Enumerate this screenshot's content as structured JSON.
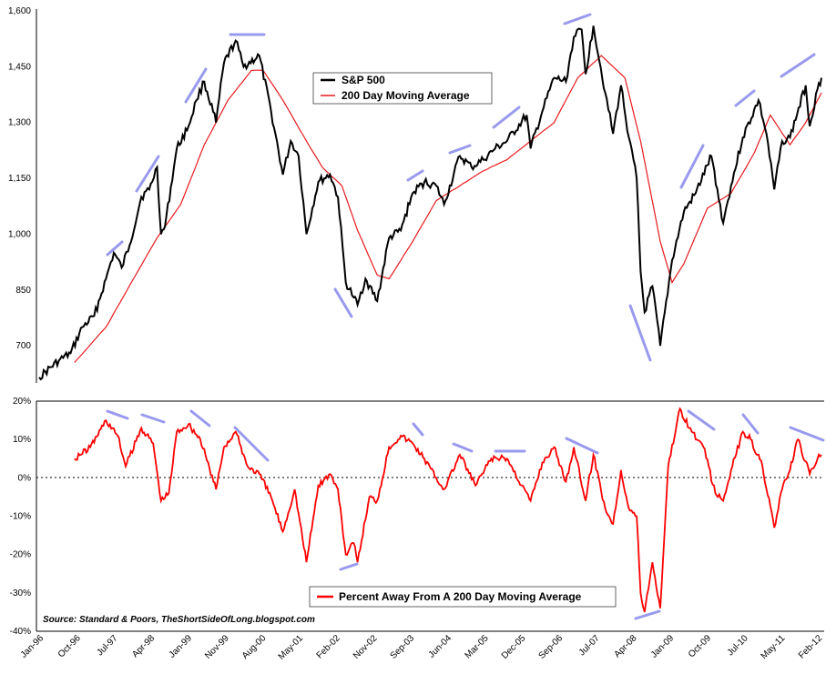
{
  "source": "Source: Standard & Poors, TheShortSideOfLong.blogspot.com",
  "colors": {
    "sp500": "#000000",
    "moving_average": "#e8191c",
    "pct_away": "#ff0000",
    "trend_marks": "#9999ee",
    "zero_line": "#000000"
  },
  "chart_data": [
    {
      "type": "line",
      "title": "",
      "legend_position": "top-center",
      "grid": false,
      "ylim": [
        600,
        1600
      ],
      "y_ticks": [
        {
          "value": 700,
          "label": "700"
        },
        {
          "value": 850,
          "label": "850"
        },
        {
          "value": 1000,
          "label": "1,000"
        },
        {
          "value": 1150,
          "label": "1,150"
        },
        {
          "value": 1300,
          "label": "1,300"
        },
        {
          "value": 1450,
          "label": "1,450"
        },
        {
          "value": 1600,
          "label": "1,600"
        }
      ],
      "x_domain": [
        "1996-01",
        "2012-08"
      ],
      "series": [
        {
          "name": "S&P 500",
          "color": "#000000",
          "points": [
            [
              "1996-01",
              615
            ],
            [
              "1996-06",
              660
            ],
            [
              "1996-09",
              680
            ],
            [
              "1996-12",
              750
            ],
            [
              "1997-03",
              780
            ],
            [
              "1997-06",
              880
            ],
            [
              "1997-08",
              950
            ],
            [
              "1997-10",
              910
            ],
            [
              "1997-12",
              970
            ],
            [
              "1998-03",
              1100
            ],
            [
              "1998-05",
              1120
            ],
            [
              "1998-07",
              1180
            ],
            [
              "1998-08",
              1000
            ],
            [
              "1998-09",
              1020
            ],
            [
              "1998-12",
              1230
            ],
            [
              "1999-03",
              1290
            ],
            [
              "1999-05",
              1360
            ],
            [
              "1999-07",
              1410
            ],
            [
              "1999-10",
              1300
            ],
            [
              "1999-12",
              1460
            ],
            [
              "2000-03",
              1520
            ],
            [
              "2000-05",
              1450
            ],
            [
              "2000-09",
              1480
            ],
            [
              "2000-12",
              1330
            ],
            [
              "2001-03",
              1160
            ],
            [
              "2001-05",
              1250
            ],
            [
              "2001-07",
              1210
            ],
            [
              "2001-09",
              1000
            ],
            [
              "2001-12",
              1140
            ],
            [
              "2002-03",
              1160
            ],
            [
              "2002-05",
              1100
            ],
            [
              "2002-07",
              870
            ],
            [
              "2002-09",
              830
            ],
            [
              "2002-10",
              810
            ],
            [
              "2002-12",
              880
            ],
            [
              "2003-03",
              820
            ],
            [
              "2003-06",
              990
            ],
            [
              "2003-09",
              1010
            ],
            [
              "2003-12",
              1110
            ],
            [
              "2004-03",
              1140
            ],
            [
              "2004-06",
              1130
            ],
            [
              "2004-08",
              1080
            ],
            [
              "2004-12",
              1210
            ],
            [
              "2005-03",
              1180
            ],
            [
              "2005-06",
              1200
            ],
            [
              "2005-09",
              1230
            ],
            [
              "2005-12",
              1250
            ],
            [
              "2006-05",
              1320
            ],
            [
              "2006-06",
              1230
            ],
            [
              "2006-09",
              1330
            ],
            [
              "2006-12",
              1420
            ],
            [
              "2007-03",
              1410
            ],
            [
              "2007-05",
              1530
            ],
            [
              "2007-07",
              1550
            ],
            [
              "2007-08",
              1430
            ],
            [
              "2007-10",
              1560
            ],
            [
              "2008-01",
              1380
            ],
            [
              "2008-03",
              1270
            ],
            [
              "2008-05",
              1400
            ],
            [
              "2008-07",
              1260
            ],
            [
              "2008-09",
              1150
            ],
            [
              "2008-10",
              900
            ],
            [
              "2008-11",
              790
            ],
            [
              "2009-01",
              860
            ],
            [
              "2009-03",
              700
            ],
            [
              "2009-06",
              930
            ],
            [
              "2009-09",
              1060
            ],
            [
              "2009-12",
              1110
            ],
            [
              "2010-04",
              1210
            ],
            [
              "2010-07",
              1030
            ],
            [
              "2010-09",
              1130
            ],
            [
              "2010-12",
              1260
            ],
            [
              "2011-04",
              1360
            ],
            [
              "2011-06",
              1270
            ],
            [
              "2011-08",
              1120
            ],
            [
              "2011-10",
              1250
            ],
            [
              "2011-12",
              1260
            ],
            [
              "2012-04",
              1400
            ],
            [
              "2012-05",
              1290
            ],
            [
              "2012-07",
              1390
            ],
            [
              "2012-08",
              1420
            ]
          ]
        },
        {
          "name": "200 Day Moving Average",
          "color": "#e8191c",
          "points": [
            [
              "1996-10",
              655
            ],
            [
              "1997-06",
              750
            ],
            [
              "1998-01",
              880
            ],
            [
              "1998-07",
              990
            ],
            [
              "1999-01",
              1080
            ],
            [
              "1999-07",
              1240
            ],
            [
              "2000-01",
              1360
            ],
            [
              "2000-07",
              1440
            ],
            [
              "2000-10",
              1440
            ],
            [
              "2001-03",
              1360
            ],
            [
              "2001-09",
              1250
            ],
            [
              "2002-01",
              1180
            ],
            [
              "2002-06",
              1130
            ],
            [
              "2002-10",
              1010
            ],
            [
              "2003-03",
              890
            ],
            [
              "2003-06",
              880
            ],
            [
              "2003-12",
              980
            ],
            [
              "2004-06",
              1090
            ],
            [
              "2004-12",
              1130
            ],
            [
              "2005-06",
              1170
            ],
            [
              "2005-12",
              1200
            ],
            [
              "2006-06",
              1250
            ],
            [
              "2006-12",
              1300
            ],
            [
              "2007-06",
              1420
            ],
            [
              "2007-12",
              1480
            ],
            [
              "2008-06",
              1420
            ],
            [
              "2008-10",
              1250
            ],
            [
              "2009-03",
              980
            ],
            [
              "2009-06",
              870
            ],
            [
              "2009-09",
              920
            ],
            [
              "2010-03",
              1070
            ],
            [
              "2010-09",
              1110
            ],
            [
              "2011-03",
              1220
            ],
            [
              "2011-07",
              1320
            ],
            [
              "2011-12",
              1240
            ],
            [
              "2012-04",
              1300
            ],
            [
              "2012-08",
              1380
            ]
          ]
        }
      ]
    },
    {
      "type": "line",
      "title": "",
      "legend_position": "bottom-center",
      "grid": false,
      "ylim": [
        -40,
        20
      ],
      "y_ticks": [
        {
          "value": 20,
          "label": "20%"
        },
        {
          "value": 10,
          "label": "10%"
        },
        {
          "value": 0,
          "label": "0%"
        },
        {
          "value": -10,
          "label": "-10%"
        },
        {
          "value": -20,
          "label": "-20%"
        },
        {
          "value": -30,
          "label": "-30%"
        },
        {
          "value": -40,
          "label": "-40%"
        }
      ],
      "x_domain": [
        "1996-01",
        "2012-08"
      ],
      "categories": [
        "Jan-96",
        "Oct-96",
        "Jul-97",
        "Apr-98",
        "Jan-99",
        "Nov-99",
        "Aug-00",
        "May-01",
        "Feb-02",
        "Nov-02",
        "Sep-03",
        "Jun-04",
        "Mar-05",
        "Dec-05",
        "Sep-06",
        "Jul-07",
        "Apr-08",
        "Jan-09",
        "Oct-09",
        "Jul-10",
        "May-11",
        "Feb-12"
      ],
      "series": [
        {
          "name": "Percent Away From A 200 Day Moving Average",
          "color": "#ff0000",
          "values": [
            [
              "1996-10",
              5
            ],
            [
              "1997-02",
              8
            ],
            [
              "1997-06",
              15
            ],
            [
              "1997-09",
              11
            ],
            [
              "1997-11",
              3
            ],
            [
              "1998-03",
              13
            ],
            [
              "1998-06",
              9
            ],
            [
              "1998-08",
              -6
            ],
            [
              "1998-10",
              -4
            ],
            [
              "1998-12",
              12
            ],
            [
              "1999-03",
              14
            ],
            [
              "1999-06",
              10
            ],
            [
              "1999-10",
              -3
            ],
            [
              "1999-12",
              8
            ],
            [
              "2000-03",
              12
            ],
            [
              "2000-06",
              3
            ],
            [
              "2000-09",
              1
            ],
            [
              "2000-12",
              -5
            ],
            [
              "2001-03",
              -14
            ],
            [
              "2001-06",
              -3
            ],
            [
              "2001-09",
              -22
            ],
            [
              "2001-12",
              -2
            ],
            [
              "2002-03",
              1
            ],
            [
              "2002-05",
              -3
            ],
            [
              "2002-07",
              -20
            ],
            [
              "2002-09",
              -17
            ],
            [
              "2002-10",
              -22
            ],
            [
              "2003-01",
              -5
            ],
            [
              "2003-03",
              -6
            ],
            [
              "2003-06",
              8
            ],
            [
              "2003-09",
              11
            ],
            [
              "2003-12",
              9
            ],
            [
              "2004-03",
              5
            ],
            [
              "2004-06",
              0
            ],
            [
              "2004-08",
              -3
            ],
            [
              "2004-12",
              6
            ],
            [
              "2005-04",
              -2
            ],
            [
              "2005-08",
              5
            ],
            [
              "2005-12",
              5
            ],
            [
              "2006-06",
              -6
            ],
            [
              "2006-09",
              4
            ],
            [
              "2006-12",
              8
            ],
            [
              "2007-03",
              -1
            ],
            [
              "2007-05",
              8
            ],
            [
              "2007-08",
              -6
            ],
            [
              "2007-10",
              6
            ],
            [
              "2008-01",
              -8
            ],
            [
              "2008-03",
              -12
            ],
            [
              "2008-05",
              2
            ],
            [
              "2008-07",
              -8
            ],
            [
              "2008-09",
              -10
            ],
            [
              "2008-10",
              -30
            ],
            [
              "2008-11",
              -35
            ],
            [
              "2009-01",
              -22
            ],
            [
              "2009-03",
              -34
            ],
            [
              "2009-05",
              3
            ],
            [
              "2009-08",
              18
            ],
            [
              "2009-11",
              12
            ],
            [
              "2010-02",
              8
            ],
            [
              "2010-05",
              -4
            ],
            [
              "2010-07",
              -6
            ],
            [
              "2010-09",
              2
            ],
            [
              "2010-12",
              12
            ],
            [
              "2011-02",
              10
            ],
            [
              "2011-05",
              3
            ],
            [
              "2011-08",
              -13
            ],
            [
              "2011-10",
              -3
            ],
            [
              "2011-12",
              2
            ],
            [
              "2012-02",
              10
            ],
            [
              "2012-05",
              1
            ],
            [
              "2012-07",
              5
            ],
            [
              "2012-08",
              6
            ]
          ]
        }
      ]
    }
  ]
}
